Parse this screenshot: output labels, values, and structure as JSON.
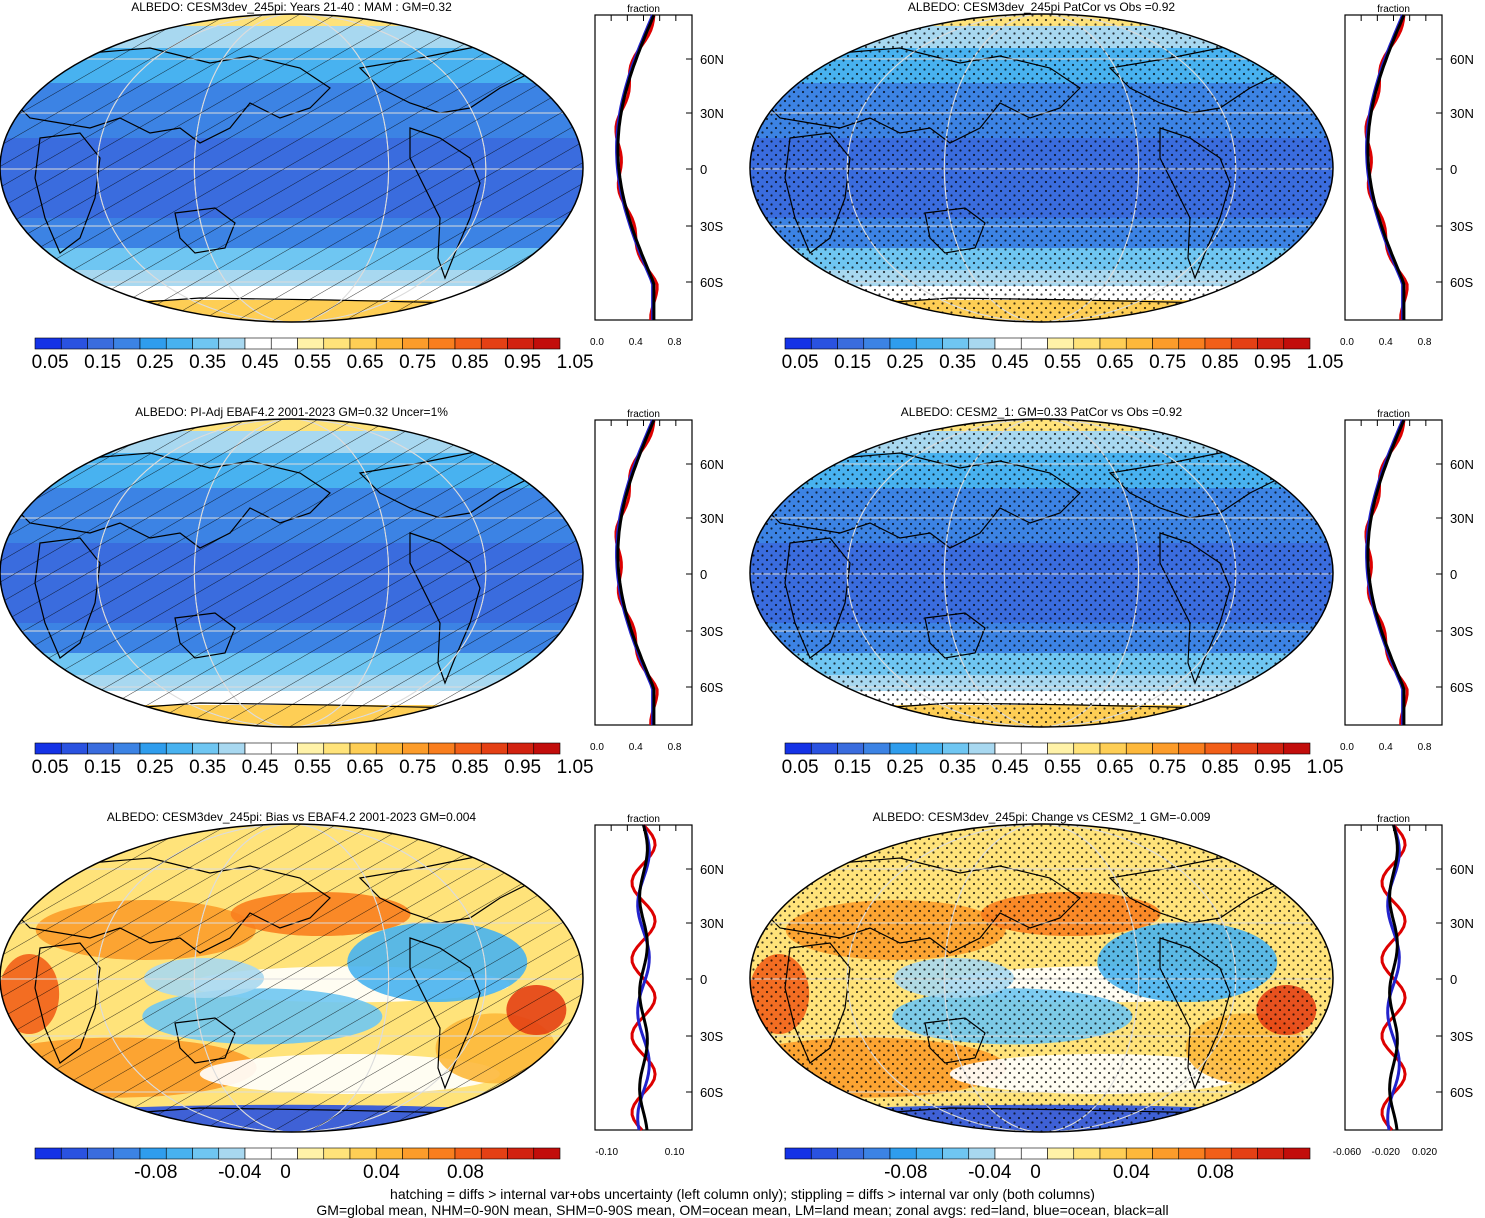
{
  "panels": [
    {
      "title": "ALBEDO: CESM3dev_245pi: Years 21-40 : MAM : GM=0.32",
      "field": "albedo",
      "overlay": "hatch",
      "colorbar_labels": [
        "0.05",
        "0.15",
        "0.25",
        "0.35",
        "0.45",
        "0.55",
        "0.65",
        "0.75",
        "0.85",
        "0.95",
        "1.05"
      ],
      "zonal_title": "fraction",
      "zonal_xticks": [
        "0.0",
        "0.4",
        "0.8"
      ]
    },
    {
      "title": "ALBEDO: CESM3dev_245pi PatCor vs Obs =0.92",
      "field": "albedo",
      "overlay": "stipple",
      "colorbar_labels": [
        "0.05",
        "0.15",
        "0.25",
        "0.35",
        "0.45",
        "0.55",
        "0.65",
        "0.75",
        "0.85",
        "0.95",
        "1.05"
      ],
      "zonal_title": "fraction",
      "zonal_xticks": [
        "0.0",
        "0.4",
        "0.8"
      ]
    },
    {
      "title": "ALBEDO: PI-Adj EBAF4.2 2001-2023 GM=0.32 Uncer=1%",
      "field": "albedo",
      "overlay": "hatch",
      "colorbar_labels": [
        "0.05",
        "0.15",
        "0.25",
        "0.35",
        "0.45",
        "0.55",
        "0.65",
        "0.75",
        "0.85",
        "0.95",
        "1.05"
      ],
      "zonal_title": "fraction",
      "zonal_xticks": [
        "0.0",
        "0.4",
        "0.8"
      ]
    },
    {
      "title": "ALBEDO: CESM2_1: GM=0.33 PatCor vs Obs =0.92",
      "field": "albedo",
      "overlay": "stipple",
      "colorbar_labels": [
        "0.05",
        "0.15",
        "0.25",
        "0.35",
        "0.45",
        "0.55",
        "0.65",
        "0.75",
        "0.85",
        "0.95",
        "1.05"
      ],
      "zonal_title": "fraction",
      "zonal_xticks": [
        "0.0",
        "0.4",
        "0.8"
      ]
    },
    {
      "title": "ALBEDO: CESM3dev_245pi: Bias vs EBAF4.2 2001-2023 GM=0.004",
      "field": "diff",
      "overlay": "hatch",
      "colorbar_labels": [
        "-0.08",
        "-0.04",
        "0",
        "0.04",
        "0.08"
      ],
      "zonal_title": "fraction",
      "zonal_xticks": [
        "-0.10",
        "0.10"
      ]
    },
    {
      "title": "ALBEDO: CESM3dev_245pi: Change vs CESM2_1 GM=-0.009",
      "field": "diff",
      "overlay": "stipple",
      "colorbar_labels": [
        "-0.08",
        "-0.04",
        "0",
        "0.04",
        "0.08"
      ],
      "zonal_title": "fraction",
      "zonal_xticks": [
        "-0.060",
        "-0.020",
        "0.020"
      ]
    }
  ],
  "lat_labels": [
    "60N",
    "30N",
    "0",
    "30S",
    "60S"
  ],
  "albedo_colors": [
    "#1432e6",
    "#2a52e0",
    "#3a6cde",
    "#3c83e4",
    "#2f9ded",
    "#48b2f0",
    "#6fc6f2",
    "#a8d8f0",
    "#ffffff",
    "#ffffff",
    "#fff2a8",
    "#ffe37a",
    "#fece55",
    "#fdb83b",
    "#fc9c2a",
    "#f97e1e",
    "#f25f18",
    "#e44014",
    "#d22210",
    "#c20d0b"
  ],
  "diff_colors": [
    "#1432e6",
    "#2a52e0",
    "#3a6cde",
    "#3c83e4",
    "#2f9ded",
    "#48b2f0",
    "#6fc6f2",
    "#a8d8f0",
    "#ffffff",
    "#ffffff",
    "#fff2a8",
    "#ffe37a",
    "#fece55",
    "#fdb83b",
    "#fc9c2a",
    "#f97e1e",
    "#f25f18",
    "#e44014",
    "#d22210",
    "#c20d0b"
  ],
  "footnote_1": "hatching = diffs > internal var+obs uncertainty (left column only); stippling = diffs > internal var only (both columns)",
  "footnote_2": "GM=global mean, NHM=0-90N mean, SHM=0-90S mean, OM=ocean mean, LM=land mean; zonal avgs: red=land, blue=ocean, black=all"
}
